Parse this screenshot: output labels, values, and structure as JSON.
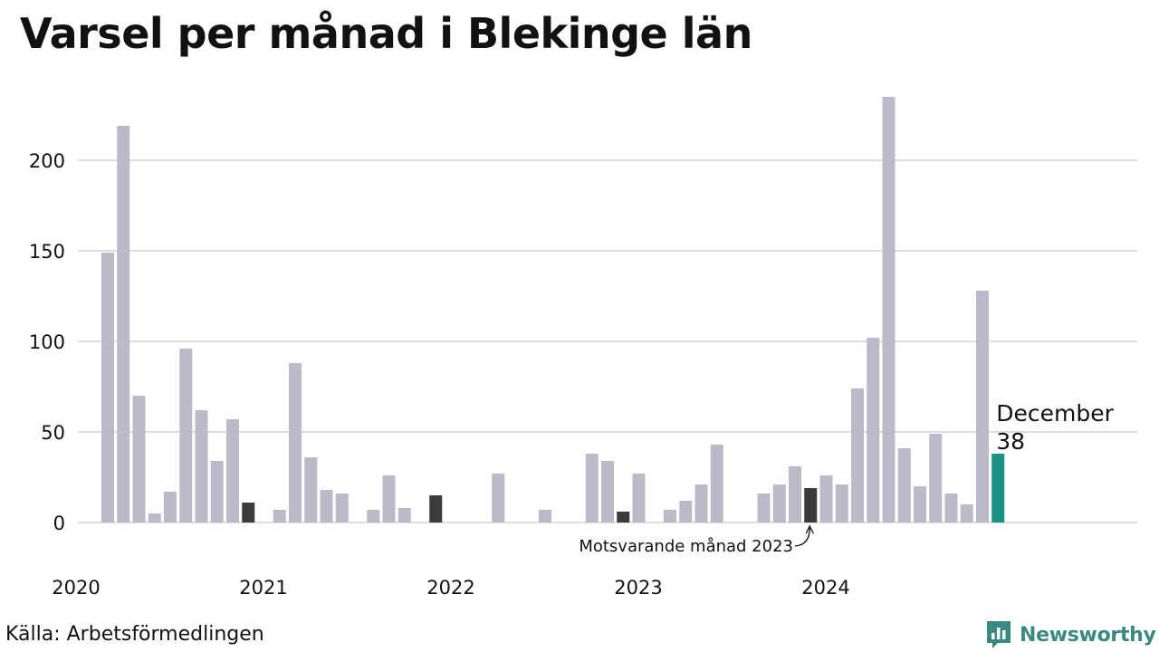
{
  "title": "Varsel per månad i Blekinge län",
  "source": "Källa: Arbetsförmedlingen",
  "brand": {
    "name": "Newsworthy",
    "icon": "newsworthy-chart-icon",
    "color": "#3a8a80"
  },
  "colors": {
    "bar": "#bcbac8",
    "same_month": "#3b3b3b",
    "current": "#1a9185",
    "grid": "#dedede"
  },
  "chart_data": {
    "type": "bar",
    "title": "Varsel per månad i Blekinge län",
    "ylim": [
      0,
      240
    ],
    "yticks": [
      0,
      50,
      100,
      150,
      200
    ],
    "grid": true,
    "xticks": [
      {
        "label": "2020",
        "index": 0
      },
      {
        "label": "2021",
        "index": 12
      },
      {
        "label": "2022",
        "index": 24
      },
      {
        "label": "2023",
        "index": 36
      },
      {
        "label": "2024",
        "index": 48
      }
    ],
    "start": "2020-03",
    "values": [
      149,
      219,
      70,
      5,
      17,
      96,
      62,
      34,
      57,
      11,
      0,
      7,
      88,
      36,
      18,
      16,
      0,
      7,
      26,
      8,
      0,
      15,
      0,
      0,
      0,
      27,
      0,
      0,
      7,
      0,
      0,
      38,
      34,
      6,
      27,
      0,
      7,
      12,
      21,
      43,
      0,
      0,
      16,
      21,
      31,
      19,
      26,
      21,
      74,
      102,
      235,
      41,
      20,
      49,
      16,
      10,
      128,
      38
    ],
    "highlight_same_month": [
      9,
      21,
      33,
      45
    ],
    "highlight_current": 57,
    "annotation": {
      "text": "Motsvarande månad 2023",
      "index": 45
    },
    "callout": {
      "label": "December",
      "value": "38",
      "index": 57
    }
  }
}
